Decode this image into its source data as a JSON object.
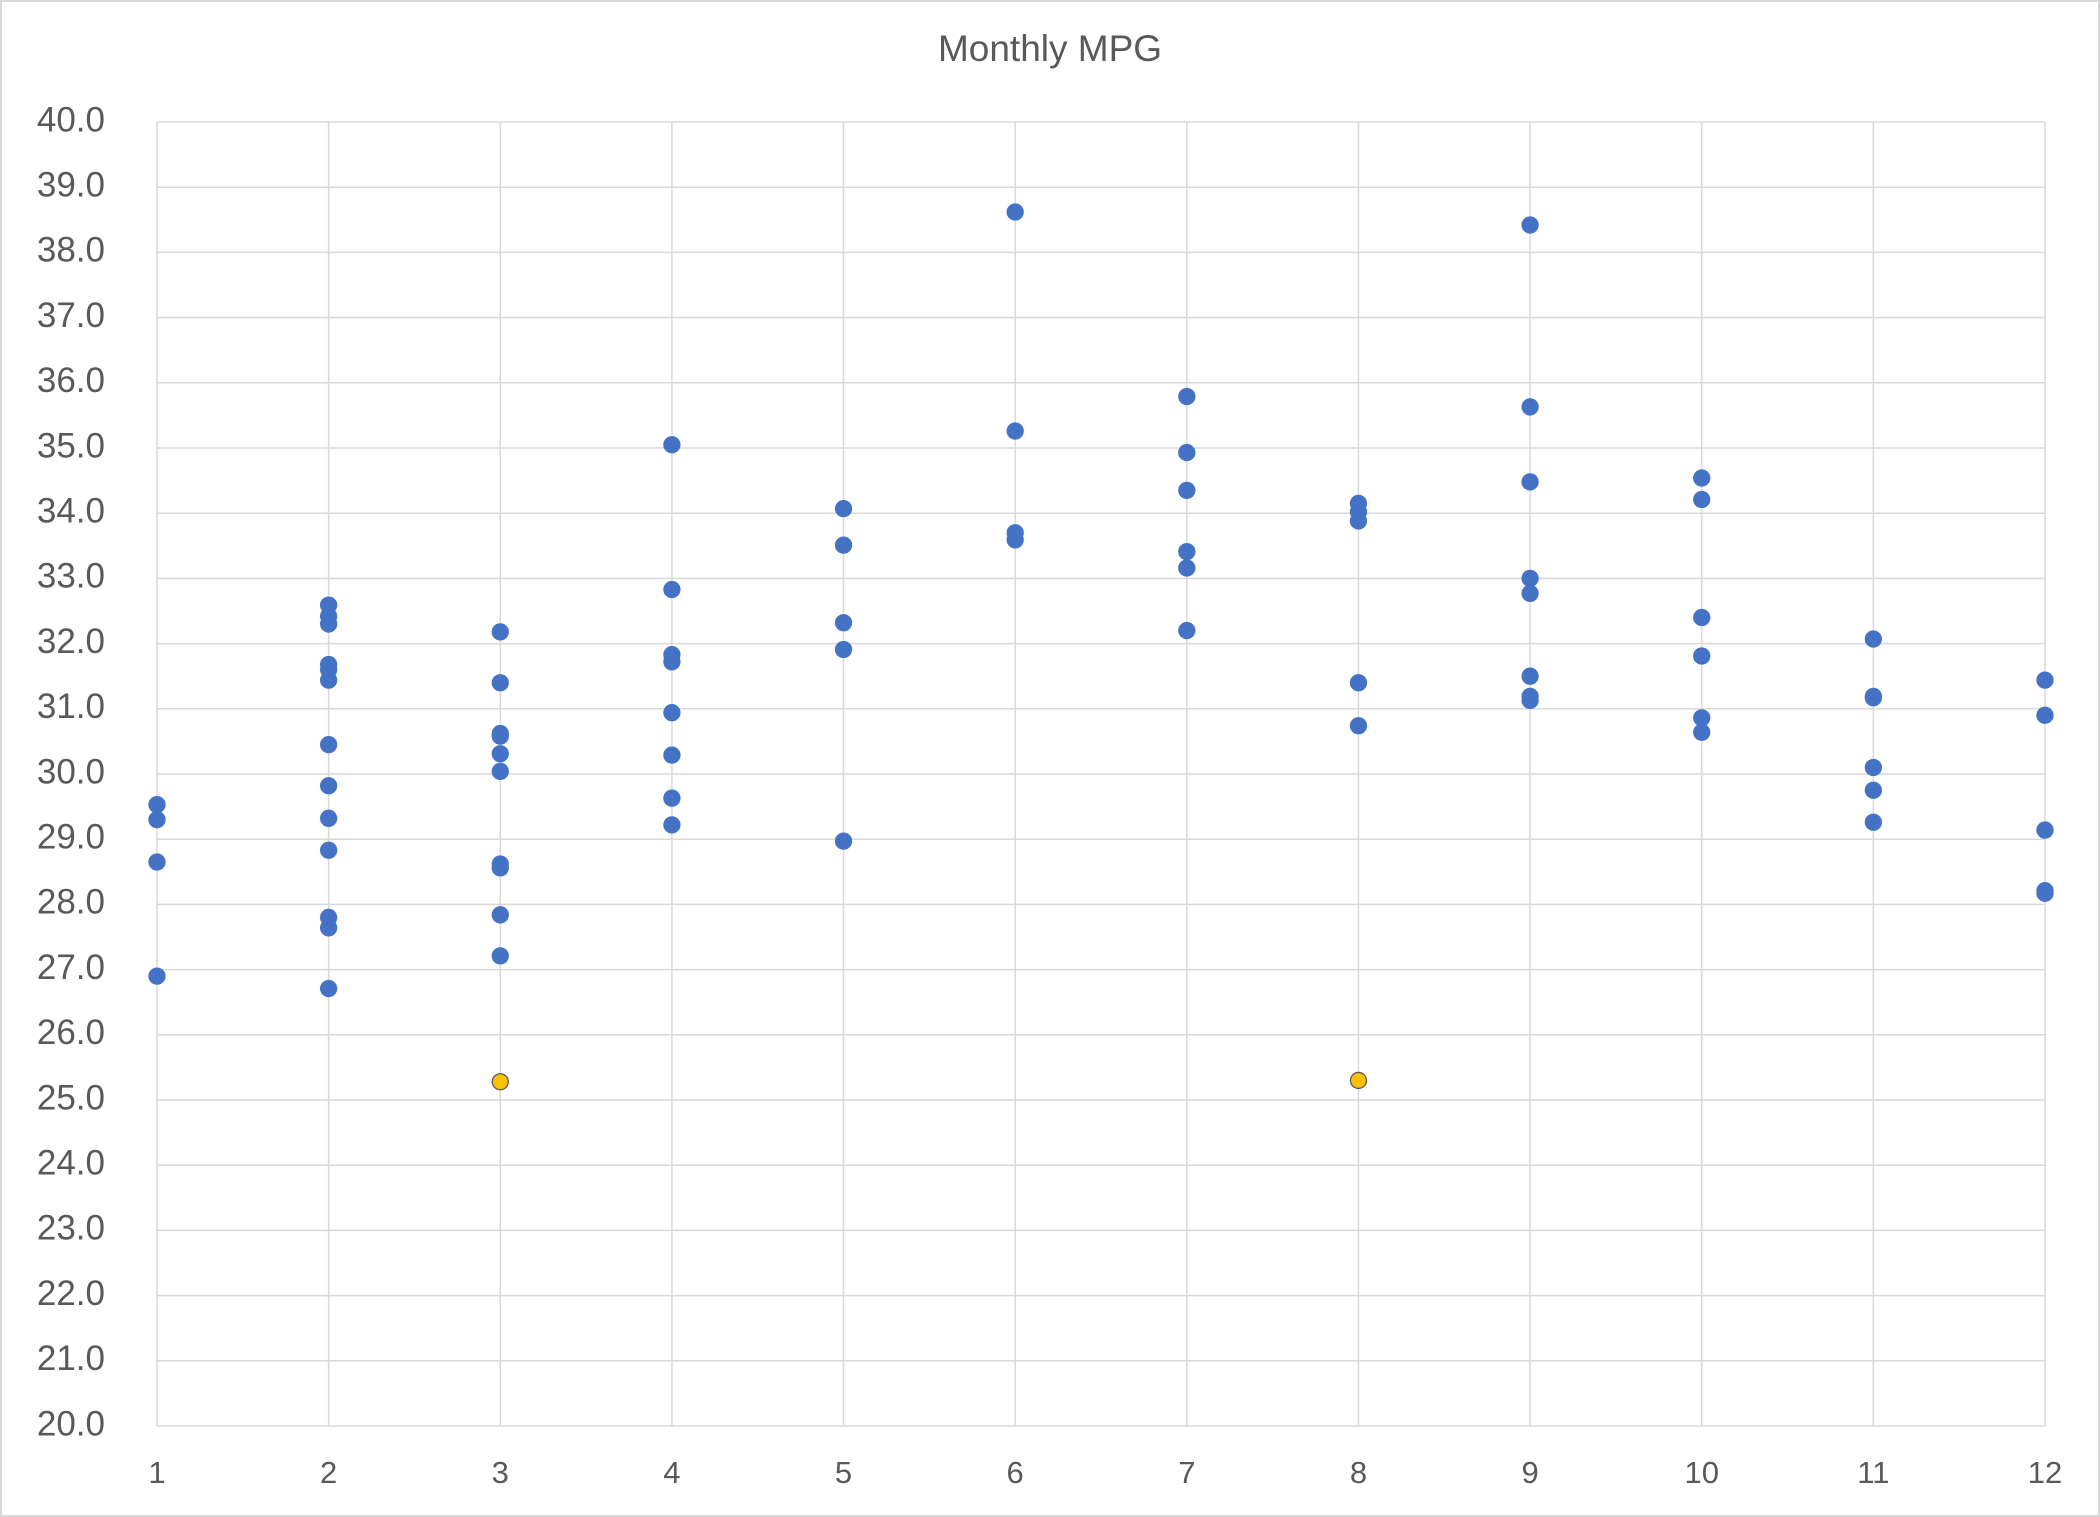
{
  "chart_data": {
    "type": "scatter",
    "title": "Monthly MPG",
    "xlim": [
      1,
      12
    ],
    "xticks": [
      1,
      2,
      3,
      4,
      5,
      6,
      7,
      8,
      9,
      10,
      11,
      12
    ],
    "ylim": [
      20,
      40
    ],
    "yticks": [
      {
        "value": 20,
        "label": "20.0"
      },
      {
        "value": 21,
        "label": "21.0"
      },
      {
        "value": 22,
        "label": "22.0"
      },
      {
        "value": 23,
        "label": "23.0"
      },
      {
        "value": 24,
        "label": "24.0"
      },
      {
        "value": 25,
        "label": "25.0"
      },
      {
        "value": 26,
        "label": "26.0"
      },
      {
        "value": 27,
        "label": "27.0"
      },
      {
        "value": 28,
        "label": "28.0"
      },
      {
        "value": 29,
        "label": "29.0"
      },
      {
        "value": 30,
        "label": "30.0"
      },
      {
        "value": 31,
        "label": "31.0"
      },
      {
        "value": 32,
        "label": "32.0"
      },
      {
        "value": 33,
        "label": "33.0"
      },
      {
        "value": 34,
        "label": "34.0"
      },
      {
        "value": 35,
        "label": "35.0"
      },
      {
        "value": 36,
        "label": "36.0"
      },
      {
        "value": 37,
        "label": "37.0"
      },
      {
        "value": 38,
        "label": "38.0"
      },
      {
        "value": 39,
        "label": "39.0"
      },
      {
        "value": 40,
        "label": "40.0"
      }
    ],
    "grid": true,
    "series": [
      {
        "color": "#4472c4",
        "x": [
          1,
          1,
          1,
          1,
          2,
          2,
          2,
          2,
          2,
          2,
          2,
          2,
          2,
          2,
          2,
          2,
          2,
          3,
          3,
          3,
          3,
          3,
          3,
          3,
          3,
          3,
          3,
          4,
          4,
          4,
          4,
          4,
          4,
          4,
          4,
          5,
          5,
          5,
          5,
          5,
          6,
          6,
          6,
          6,
          7,
          7,
          7,
          7,
          7,
          7,
          8,
          8,
          8,
          8,
          8,
          9,
          9,
          9,
          9,
          9,
          9,
          9,
          9,
          10,
          10,
          10,
          10,
          10,
          10,
          11,
          11,
          11,
          11,
          11,
          11,
          12,
          12,
          12,
          12,
          12
        ],
        "values": [
          29.53,
          29.3,
          28.65,
          26.9,
          32.59,
          32.42,
          32.3,
          31.68,
          31.6,
          31.44,
          30.45,
          29.82,
          29.32,
          28.83,
          27.8,
          27.64,
          26.71,
          32.18,
          31.4,
          30.62,
          30.58,
          30.31,
          30.04,
          28.62,
          28.56,
          27.84,
          27.21,
          35.05,
          32.83,
          31.83,
          31.72,
          30.94,
          30.29,
          29.63,
          29.22,
          34.07,
          33.51,
          32.32,
          31.91,
          28.97,
          38.62,
          35.26,
          33.7,
          33.59,
          35.79,
          34.93,
          34.35,
          33.41,
          33.16,
          32.2,
          34.15,
          34.02,
          33.88,
          31.4,
          30.74,
          38.42,
          35.63,
          34.48,
          33.0,
          32.77,
          31.5,
          31.19,
          31.13,
          34.54,
          34.21,
          32.4,
          31.81,
          30.86,
          30.64,
          32.07,
          31.19,
          31.17,
          30.1,
          29.75,
          29.26,
          31.44,
          30.9,
          29.14,
          28.21,
          28.17
        ]
      },
      {
        "color": "#ffc000",
        "x": [
          3,
          8
        ],
        "values": [
          25.28,
          25.3
        ]
      }
    ]
  }
}
